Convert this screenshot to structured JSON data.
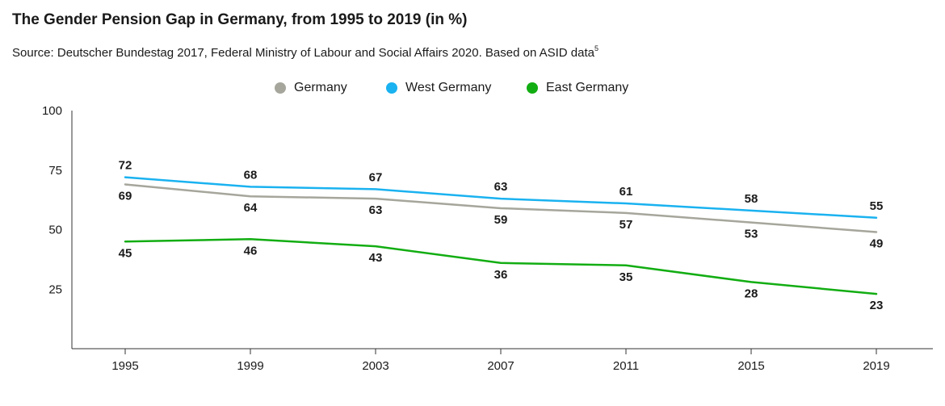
{
  "title": "The Gender Pension Gap in Germany, from 1995 to 2019 (in %)",
  "subtitle": "Source: Deutscher Bundestag 2017, Federal Ministry of Labour and Social Affairs 2020. Based on ASID data",
  "subtitle_sup": "5",
  "colors": {
    "Germany": "#a6a69c",
    "West Germany": "#1ab2f0",
    "East Germany": "#12ad12"
  },
  "chart_data": {
    "type": "line",
    "x": [
      "1995",
      "1999",
      "2003",
      "2007",
      "2011",
      "2015",
      "2019"
    ],
    "series": [
      {
        "name": "Germany",
        "values": [
          69,
          64,
          63,
          59,
          57,
          53,
          49
        ]
      },
      {
        "name": "West Germany",
        "values": [
          72,
          68,
          67,
          63,
          61,
          58,
          55
        ]
      },
      {
        "name": "East Germany",
        "values": [
          45,
          46,
          43,
          36,
          35,
          28,
          23
        ]
      }
    ],
    "yticks": [
      "100",
      "75",
      "50",
      "25"
    ],
    "ylim": [
      0,
      100
    ],
    "grid": false,
    "legend_position": "top-center"
  }
}
